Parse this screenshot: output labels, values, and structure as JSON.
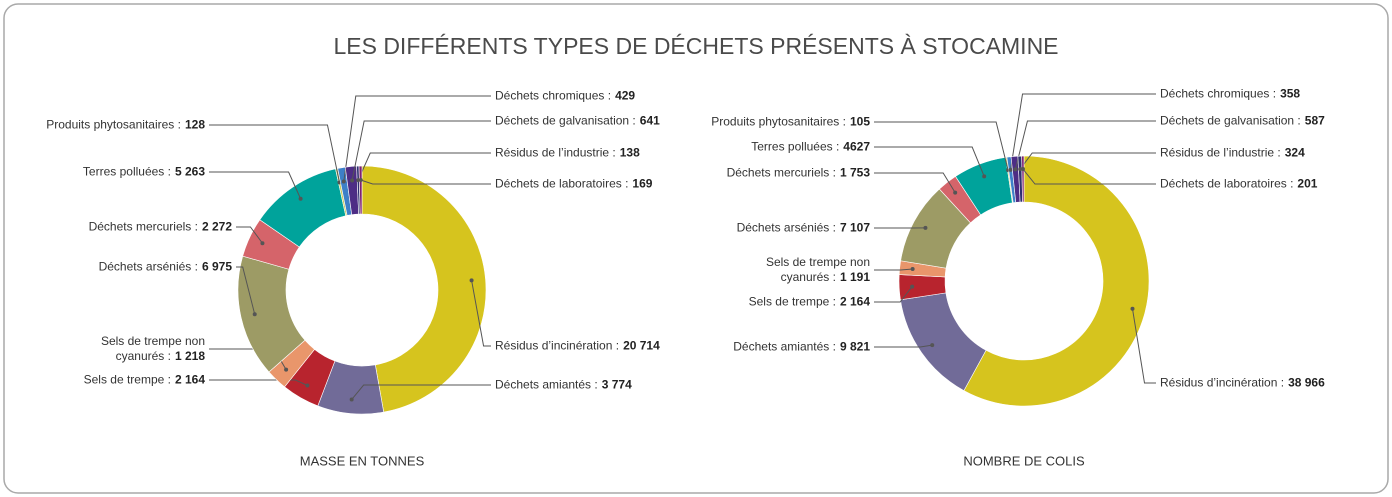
{
  "title": "LES DIFFÉRENTS TYPES DE DÉCHETS PRÉSENTS À STOCAMINE",
  "chart_data": [
    {
      "type": "donut",
      "title": "MASSE EN TONNES",
      "categories": [
        "Résidus d’incinération :",
        "Déchets amiantés :",
        "Sels de trempe :",
        "Sels de trempe non cyanurés :",
        "Déchets arséniés :",
        "Déchets mercuriels :",
        "Terres polluées :",
        "Produits phytosanitaires :",
        "Déchets chromiques :",
        "Déchets de galvanisation :",
        "Résidus de l’industrie :",
        "Déchets de laboratoires :"
      ],
      "values": [
        20714,
        3774,
        2164,
        1218,
        6975,
        2272,
        5263,
        128,
        429,
        641,
        138,
        169
      ],
      "value_labels": [
        "20 714",
        "3 774",
        "2 164",
        "1 218",
        "6 975",
        "2 272",
        "5 263",
        "128",
        "429",
        "641",
        "138",
        "169"
      ],
      "colors": [
        "#d6c41e",
        "#716b98",
        "#b8242e",
        "#e9966b",
        "#9d9b65",
        "#d5646a",
        "#00a39b",
        "#c9c95a",
        "#3d80c8",
        "#4d2d85",
        "#2e2f6f",
        "#7d2070"
      ]
    },
    {
      "type": "donut",
      "title": "NOMBRE DE COLIS",
      "categories": [
        "Résidus d’incinération :",
        "Déchets amiantés :",
        "Sels de trempe :",
        "Sels de trempe non cyanurés :",
        "Déchets arséniés :",
        "Déchets mercuriels :",
        "Terres polluées :",
        "Produits phytosanitaires :",
        "Déchets chromiques :",
        "Déchets de galvanisation :",
        "Résidus de l’industrie :",
        "Déchets de laboratoires :"
      ],
      "values": [
        38966,
        9821,
        2164,
        1191,
        7107,
        1753,
        4627,
        105,
        358,
        587,
        324,
        201
      ],
      "value_labels": [
        "38 966",
        "9 821",
        "2 164",
        "1 191",
        "7 107",
        "1 753",
        "4627",
        "105",
        "358",
        "587",
        "324",
        "201"
      ],
      "colors": [
        "#d6c41e",
        "#716b98",
        "#b8242e",
        "#e9966b",
        "#9d9b65",
        "#d5646a",
        "#00a39b",
        "#c9c95a",
        "#3d80c8",
        "#4d2d85",
        "#2e2f6f",
        "#7d2070"
      ]
    }
  ]
}
